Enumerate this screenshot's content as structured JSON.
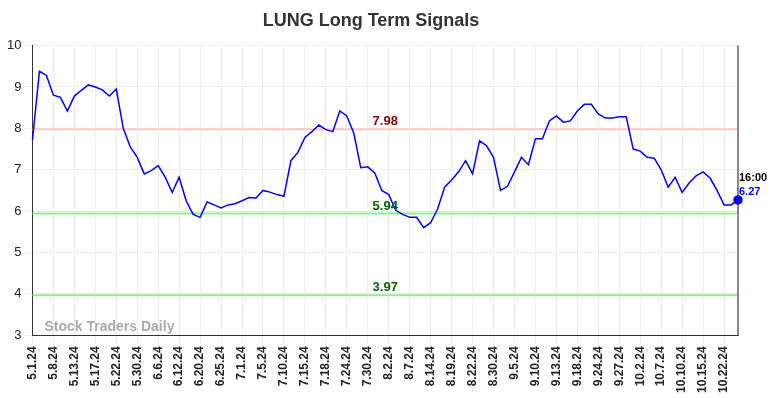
{
  "chart_data": {
    "type": "line",
    "title": "LUNG Long Term Signals",
    "watermark": "Stock Traders Daily",
    "color": "#0000ff",
    "grid": true,
    "legend": false,
    "ylim": [
      3,
      10
    ],
    "yticks": [
      3,
      4,
      5,
      6,
      7,
      8,
      9,
      10
    ],
    "categories": [
      "5.1.24",
      null,
      null,
      "5.8.24",
      null,
      null,
      "5.13.24",
      null,
      null,
      "5.17.24",
      null,
      null,
      "5.22.24",
      null,
      null,
      "5.30.24",
      null,
      null,
      "6.6.24",
      null,
      null,
      "6.12.24",
      null,
      null,
      "6.20.24",
      null,
      null,
      "6.25.24",
      null,
      null,
      "7.1.24",
      null,
      null,
      "7.5.24",
      null,
      null,
      "7.10.24",
      null,
      null,
      "7.15.24",
      null,
      null,
      "7.18.24",
      null,
      null,
      "7.24.24",
      null,
      null,
      "7.30.24",
      null,
      null,
      "8.2.24",
      null,
      null,
      "8.7.24",
      null,
      null,
      "8.14.24",
      null,
      null,
      "8.19.24",
      null,
      null,
      "8.22.24",
      null,
      null,
      "8.30.24",
      null,
      null,
      "9.5.24",
      null,
      null,
      "9.10.24",
      null,
      null,
      "9.13.24",
      null,
      null,
      "9.18.24",
      null,
      null,
      "9.24.24",
      null,
      null,
      "9.27.24",
      null,
      null,
      "10.2.24",
      null,
      null,
      "10.7.24",
      null,
      null,
      "10.10.24",
      null,
      null,
      "10.15.24",
      null,
      null,
      "10.22.24",
      null,
      null
    ],
    "values": [
      7.72,
      9.38,
      9.28,
      8.8,
      8.75,
      8.42,
      8.78,
      8.92,
      9.05,
      9.0,
      8.93,
      8.78,
      8.95,
      8.0,
      7.55,
      7.3,
      6.9,
      6.98,
      7.1,
      6.82,
      6.45,
      6.82,
      6.25,
      5.92,
      5.85,
      6.22,
      6.15,
      6.08,
      6.15,
      6.18,
      6.25,
      6.33,
      6.32,
      6.5,
      6.46,
      6.4,
      6.36,
      7.22,
      7.42,
      7.78,
      7.92,
      8.08,
      7.97,
      7.92,
      8.42,
      8.3,
      7.88,
      7.05,
      7.07,
      6.92,
      6.5,
      6.4,
      6.02,
      5.92,
      5.85,
      5.85,
      5.6,
      5.72,
      6.05,
      6.58,
      6.75,
      6.95,
      7.22,
      6.9,
      7.7,
      7.58,
      7.3,
      6.5,
      6.6,
      6.95,
      7.3,
      7.12,
      7.75,
      7.75,
      8.18,
      8.3,
      8.15,
      8.18,
      8.42,
      8.58,
      8.58,
      8.35,
      8.25,
      8.25,
      8.28,
      8.28,
      7.5,
      7.45,
      7.3,
      7.28,
      7.0,
      6.58,
      6.82,
      6.45,
      6.68,
      6.85,
      6.95,
      6.8,
      6.5,
      6.15,
      6.15,
      6.27
    ],
    "lines": [
      {
        "value": 7.98,
        "label": "7.98",
        "color": "#ffc8c8",
        "label_color": "#8b0000"
      },
      {
        "value": 5.94,
        "label": "5.94",
        "color": "#90ee90",
        "label_color": "#006400"
      },
      {
        "value": 3.97,
        "label": "3.97",
        "color": "#90ee90",
        "label_color": "#006400"
      }
    ],
    "last_label": {
      "time": "16:00",
      "value": 6.27
    }
  }
}
